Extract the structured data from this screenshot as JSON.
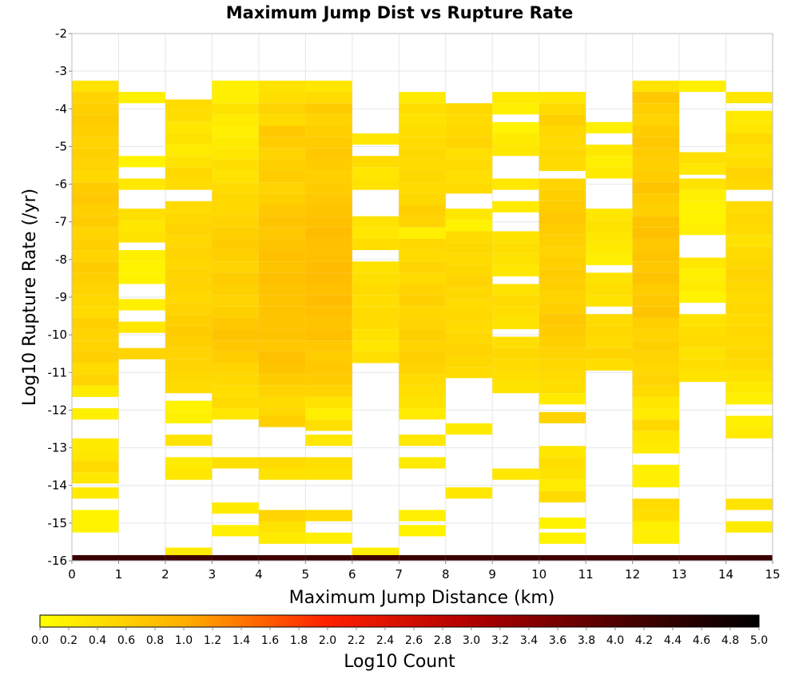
{
  "chart_data": {
    "type": "heatmap",
    "title": "Maximum Jump Dist vs Rupture Rate",
    "xlabel": "Maximum Jump Distance (km)",
    "ylabel": "Log10 Rupture Rate (/yr)",
    "xlim": [
      0,
      15
    ],
    "ylim": [
      -16,
      -2
    ],
    "x_ticks": [
      "0",
      "1",
      "2",
      "3",
      "4",
      "5",
      "6",
      "7",
      "8",
      "9",
      "10",
      "11",
      "12",
      "13",
      "14",
      "15"
    ],
    "y_ticks": [
      "-2",
      "-3",
      "-4",
      "-5",
      "-6",
      "-7",
      "-8",
      "-9",
      "-10",
      "-11",
      "-12",
      "-13",
      "-14",
      "-15",
      "-16"
    ],
    "bin_width_x": 1,
    "bin_height_y": 0.3,
    "grid": true,
    "colorbar": {
      "label": "Log10 Count",
      "min": 0,
      "max": 5,
      "ticks": [
        "0.0",
        "0.2",
        "0.4",
        "0.6",
        "0.8",
        "1.0",
        "1.2",
        "1.4",
        "1.6",
        "1.8",
        "2.0",
        "2.2",
        "2.4",
        "2.6",
        "2.8",
        "3.0",
        "3.2",
        "3.4",
        "3.6",
        "3.8",
        "4.0",
        "4.2",
        "4.4",
        "4.6",
        "4.8",
        "5.0"
      ],
      "stops": [
        {
          "v": 0.0,
          "color": "#ffff00"
        },
        {
          "v": 1.0,
          "color": "#ffb000"
        },
        {
          "v": 2.0,
          "color": "#ff2000"
        },
        {
          "v": 3.0,
          "color": "#b00000"
        },
        {
          "v": 4.0,
          "color": "#500000"
        },
        {
          "v": 5.0,
          "color": "#000000"
        }
      ]
    },
    "columns": [
      {
        "x": 0,
        "values": {
          "-3.4": 0.35,
          "-3.7": 0.55,
          "-4.0": 0.6,
          "-4.3": 0.65,
          "-4.6": 0.6,
          "-4.9": 0.55,
          "-5.2": 0.6,
          "-5.5": 0.55,
          "-5.8": 0.5,
          "-6.1": 0.65,
          "-6.4": 0.7,
          "-6.7": 0.6,
          "-7.0": 0.65,
          "-7.3": 0.55,
          "-7.6": 0.6,
          "-7.9": 0.55,
          "-8.2": 0.65,
          "-8.5": 0.6,
          "-8.8": 0.55,
          "-9.1": 0.5,
          "-9.4": 0.45,
          "-9.7": 0.6,
          "-10.0": 0.55,
          "-10.3": 0.55,
          "-10.6": 0.6,
          "-10.9": 0.45,
          "-11.2": 0.55,
          "-11.5": 0.25,
          "-12.1": 0.2,
          "-12.9": 0.25,
          "-13.2": 0.3,
          "-13.5": 0.45,
          "-13.8": 0.3,
          "-14.2": 0.25,
          "-14.8": 0.15,
          "-15.1": 0.15,
          "-16.0": 4.3
        }
      },
      {
        "x": 1,
        "values": {
          "-3.7": 0.2,
          "-5.4": 0.15,
          "-6.0": 0.3,
          "-6.8": 0.4,
          "-7.1": 0.3,
          "-7.4": 0.35,
          "-7.9": 0.2,
          "-8.2": 0.15,
          "-8.5": 0.15,
          "-9.2": 0.2,
          "-9.8": 0.3,
          "-10.5": 0.55,
          "-16.0": 4.3
        }
      },
      {
        "x": 2,
        "values": {
          "-3.9": 0.45,
          "-4.2": 0.4,
          "-4.5": 0.3,
          "-4.8": 0.35,
          "-5.1": 0.25,
          "-5.4": 0.35,
          "-5.7": 0.5,
          "-6.0": 0.45,
          "-6.6": 0.45,
          "-6.9": 0.5,
          "-7.2": 0.55,
          "-7.5": 0.5,
          "-7.8": 0.55,
          "-8.1": 0.5,
          "-8.4": 0.55,
          "-8.7": 0.55,
          "-9.0": 0.5,
          "-9.3": 0.55,
          "-9.6": 0.6,
          "-9.9": 0.65,
          "-10.2": 0.6,
          "-10.5": 0.55,
          "-10.8": 0.55,
          "-11.1": 0.5,
          "-11.4": 0.45,
          "-11.9": 0.15,
          "-12.2": 0.2,
          "-12.8": 0.35,
          "-13.4": 0.25,
          "-13.7": 0.3,
          "-15.8": 0.25,
          "-16.0": 4.2
        }
      },
      {
        "x": 3,
        "values": {
          "-3.4": 0.2,
          "-3.7": 0.2,
          "-4.0": 0.35,
          "-4.3": 0.25,
          "-4.6": 0.2,
          "-4.9": 0.25,
          "-5.2": 0.3,
          "-5.5": 0.4,
          "-5.8": 0.35,
          "-6.1": 0.45,
          "-6.4": 0.5,
          "-6.7": 0.5,
          "-7.0": 0.55,
          "-7.3": 0.6,
          "-7.6": 0.65,
          "-7.9": 0.6,
          "-8.2": 0.55,
          "-8.5": 0.65,
          "-8.8": 0.6,
          "-9.1": 0.55,
          "-9.4": 0.6,
          "-9.7": 0.7,
          "-10.0": 0.75,
          "-10.3": 0.7,
          "-10.6": 0.65,
          "-10.9": 0.55,
          "-11.2": 0.5,
          "-11.5": 0.4,
          "-11.8": 0.45,
          "-12.1": 0.3,
          "-13.4": 0.4,
          "-14.6": 0.25,
          "-15.2": 0.2,
          "-16.0": 4.3
        }
      },
      {
        "x": 4,
        "values": {
          "-3.4": 0.35,
          "-3.7": 0.4,
          "-4.0": 0.55,
          "-4.3": 0.45,
          "-4.6": 0.7,
          "-4.9": 0.65,
          "-5.2": 0.55,
          "-5.5": 0.6,
          "-5.8": 0.65,
          "-6.1": 0.55,
          "-6.4": 0.6,
          "-6.7": 0.7,
          "-7.0": 0.75,
          "-7.3": 0.7,
          "-7.6": 0.75,
          "-7.9": 0.8,
          "-8.2": 0.75,
          "-8.5": 0.8,
          "-8.8": 0.75,
          "-9.1": 0.75,
          "-9.4": 0.75,
          "-9.7": 0.75,
          "-10.0": 0.75,
          "-10.3": 0.7,
          "-10.6": 0.8,
          "-10.9": 0.75,
          "-11.2": 0.65,
          "-11.5": 0.55,
          "-11.8": 0.45,
          "-12.1": 0.5,
          "-12.3": 0.6,
          "-13.4": 0.45,
          "-13.7": 0.35,
          "-14.8": 0.55,
          "-15.1": 0.35,
          "-15.4": 0.25,
          "-16.0": 4.2
        }
      },
      {
        "x": 5,
        "values": {
          "-3.4": 0.3,
          "-3.7": 0.45,
          "-4.0": 0.65,
          "-4.3": 0.55,
          "-4.6": 0.6,
          "-4.9": 0.65,
          "-5.2": 0.7,
          "-5.5": 0.65,
          "-5.8": 0.6,
          "-6.1": 0.65,
          "-6.4": 0.7,
          "-6.7": 0.75,
          "-7.0": 0.8,
          "-7.3": 0.85,
          "-7.6": 0.8,
          "-7.9": 0.8,
          "-8.2": 0.85,
          "-8.5": 0.85,
          "-8.8": 0.8,
          "-9.1": 0.85,
          "-9.4": 0.8,
          "-9.7": 0.75,
          "-10.0": 0.8,
          "-10.3": 0.7,
          "-10.6": 0.65,
          "-10.9": 0.7,
          "-11.2": 0.65,
          "-11.5": 0.55,
          "-11.8": 0.35,
          "-12.1": 0.2,
          "-12.4": 0.4,
          "-12.8": 0.3,
          "-13.4": 0.4,
          "-13.7": 0.35,
          "-14.8": 0.45,
          "-15.4": 0.2,
          "-16.0": 4.3
        }
      },
      {
        "x": 6,
        "values": {
          "-4.8": 0.3,
          "-5.4": 0.45,
          "-5.7": 0.3,
          "-6.0": 0.35,
          "-7.0": 0.35,
          "-7.3": 0.3,
          "-7.6": 0.4,
          "-8.2": 0.35,
          "-8.5": 0.4,
          "-8.8": 0.45,
          "-9.1": 0.4,
          "-9.4": 0.45,
          "-9.7": 0.45,
          "-10.0": 0.35,
          "-10.3": 0.3,
          "-10.6": 0.4,
          "-15.8": 0.2,
          "-16.0": 4.2
        }
      },
      {
        "x": 7,
        "values": {
          "-3.7": 0.25,
          "-4.0": 0.4,
          "-4.3": 0.35,
          "-4.6": 0.4,
          "-4.9": 0.45,
          "-5.2": 0.5,
          "-5.5": 0.45,
          "-5.8": 0.5,
          "-6.1": 0.45,
          "-6.4": 0.5,
          "-6.7": 0.6,
          "-7.0": 0.55,
          "-7.3": 0.2,
          "-7.6": 0.5,
          "-7.9": 0.45,
          "-8.2": 0.55,
          "-8.5": 0.45,
          "-8.8": 0.55,
          "-9.1": 0.6,
          "-9.4": 0.5,
          "-9.7": 0.55,
          "-10.0": 0.6,
          "-10.3": 0.55,
          "-10.6": 0.6,
          "-10.9": 0.55,
          "-11.2": 0.45,
          "-11.5": 0.4,
          "-11.8": 0.35,
          "-12.1": 0.25,
          "-12.8": 0.3,
          "-13.4": 0.25,
          "-14.8": 0.2,
          "-15.2": 0.15,
          "-16.0": 4.3
        }
      },
      {
        "x": 8,
        "values": {
          "-4.0": 0.5,
          "-4.3": 0.45,
          "-4.6": 0.5,
          "-4.9": 0.55,
          "-5.2": 0.4,
          "-5.5": 0.45,
          "-5.8": 0.4,
          "-6.1": 0.45,
          "-6.8": 0.3,
          "-7.1": 0.15,
          "-7.4": 0.45,
          "-7.7": 0.5,
          "-8.0": 0.45,
          "-8.3": 0.5,
          "-8.6": 0.55,
          "-8.9": 0.5,
          "-9.2": 0.45,
          "-9.5": 0.5,
          "-9.8": 0.45,
          "-10.1": 0.5,
          "-10.4": 0.55,
          "-10.7": 0.5,
          "-11.0": 0.45,
          "-12.5": 0.25,
          "-14.2": 0.3,
          "-16.0": 4.3
        }
      },
      {
        "x": 9,
        "values": {
          "-3.7": 0.25,
          "-4.0": 0.2,
          "-4.5": 0.15,
          "-4.8": 0.25,
          "-5.1": 0.3,
          "-6.0": 0.3,
          "-6.6": 0.25,
          "-7.4": 0.35,
          "-7.7": 0.4,
          "-8.0": 0.35,
          "-8.3": 0.3,
          "-8.8": 0.35,
          "-9.1": 0.45,
          "-9.4": 0.4,
          "-9.7": 0.35,
          "-10.2": 0.4,
          "-10.5": 0.5,
          "-10.8": 0.45,
          "-11.1": 0.4,
          "-11.4": 0.35,
          "-13.7": 0.3,
          "-16.0": 4.3
        }
      },
      {
        "x": 10,
        "values": {
          "-3.7": 0.3,
          "-4.0": 0.45,
          "-4.3": 0.6,
          "-4.6": 0.5,
          "-4.9": 0.45,
          "-5.2": 0.5,
          "-5.5": 0.45,
          "-6.0": 0.55,
          "-6.3": 0.6,
          "-6.6": 0.65,
          "-6.9": 0.7,
          "-7.2": 0.65,
          "-7.5": 0.6,
          "-7.8": 0.55,
          "-8.1": 0.6,
          "-8.4": 0.65,
          "-8.7": 0.6,
          "-9.0": 0.55,
          "-9.3": 0.6,
          "-9.6": 0.7,
          "-9.9": 0.65,
          "-10.2": 0.6,
          "-10.5": 0.55,
          "-10.8": 0.5,
          "-11.1": 0.45,
          "-11.4": 0.4,
          "-11.7": 0.25,
          "-12.2": 0.55,
          "-13.1": 0.3,
          "-13.4": 0.4,
          "-13.7": 0.35,
          "-14.0": 0.25,
          "-14.3": 0.45,
          "-15.0": 0.15,
          "-15.4": 0.15,
          "-16.0": 4.2
        }
      },
      {
        "x": 11,
        "values": {
          "-4.5": 0.2,
          "-5.1": 0.3,
          "-5.4": 0.2,
          "-5.7": 0.25,
          "-6.8": 0.3,
          "-7.1": 0.35,
          "-7.4": 0.3,
          "-7.7": 0.25,
          "-8.0": 0.2,
          "-8.5": 0.35,
          "-8.8": 0.4,
          "-9.1": 0.35,
          "-9.6": 0.45,
          "-9.9": 0.5,
          "-10.2": 0.45,
          "-10.5": 0.55,
          "-10.8": 0.4,
          "-16.0": 4.2
        }
      },
      {
        "x": 12,
        "values": {
          "-3.4": 0.35,
          "-3.7": 0.7,
          "-4.0": 0.6,
          "-4.3": 0.55,
          "-4.6": 0.65,
          "-4.9": 0.7,
          "-5.2": 0.65,
          "-5.5": 0.6,
          "-5.8": 0.65,
          "-6.1": 0.75,
          "-6.4": 0.65,
          "-6.7": 0.6,
          "-7.0": 0.75,
          "-7.3": 0.8,
          "-7.6": 0.7,
          "-7.9": 0.75,
          "-8.2": 0.7,
          "-8.5": 0.75,
          "-8.8": 0.65,
          "-9.1": 0.7,
          "-9.4": 0.75,
          "-9.7": 0.6,
          "-10.0": 0.55,
          "-10.3": 0.6,
          "-10.6": 0.55,
          "-10.9": 0.5,
          "-11.2": 0.55,
          "-11.5": 0.45,
          "-11.8": 0.3,
          "-12.1": 0.25,
          "-12.4": 0.5,
          "-12.7": 0.3,
          "-13.0": 0.25,
          "-13.6": 0.2,
          "-13.9": 0.2,
          "-14.5": 0.45,
          "-14.8": 0.4,
          "-15.1": 0.2,
          "-15.4": 0.2,
          "-16.0": 4.3
        }
      },
      {
        "x": 13,
        "values": {
          "-3.4": 0.2,
          "-5.3": 0.4,
          "-5.6": 0.3,
          "-6.0": 0.35,
          "-6.3": 0.2,
          "-6.6": 0.15,
          "-6.9": 0.15,
          "-7.2": 0.2,
          "-8.1": 0.3,
          "-8.4": 0.2,
          "-8.7": 0.25,
          "-9.0": 0.15,
          "-9.6": 0.35,
          "-9.9": 0.4,
          "-10.2": 0.45,
          "-10.5": 0.35,
          "-10.8": 0.4,
          "-11.1": 0.35,
          "-16.0": 4.2
        }
      },
      {
        "x": 14,
        "values": {
          "-3.7": 0.3,
          "-4.2": 0.25,
          "-4.5": 0.3,
          "-4.8": 0.45,
          "-5.1": 0.35,
          "-5.4": 0.4,
          "-5.7": 0.55,
          "-6.0": 0.5,
          "-6.6": 0.45,
          "-6.9": 0.5,
          "-7.2": 0.45,
          "-7.5": 0.35,
          "-7.8": 0.45,
          "-8.1": 0.5,
          "-8.4": 0.55,
          "-8.7": 0.5,
          "-9.0": 0.45,
          "-9.3": 0.5,
          "-9.6": 0.45,
          "-9.9": 0.5,
          "-10.2": 0.45,
          "-10.5": 0.5,
          "-10.8": 0.45,
          "-11.1": 0.35,
          "-11.4": 0.25,
          "-11.7": 0.2,
          "-12.3": 0.2,
          "-12.6": 0.25,
          "-14.5": 0.35,
          "-15.1": 0.25,
          "-16.0": 4.3
        }
      }
    ]
  }
}
